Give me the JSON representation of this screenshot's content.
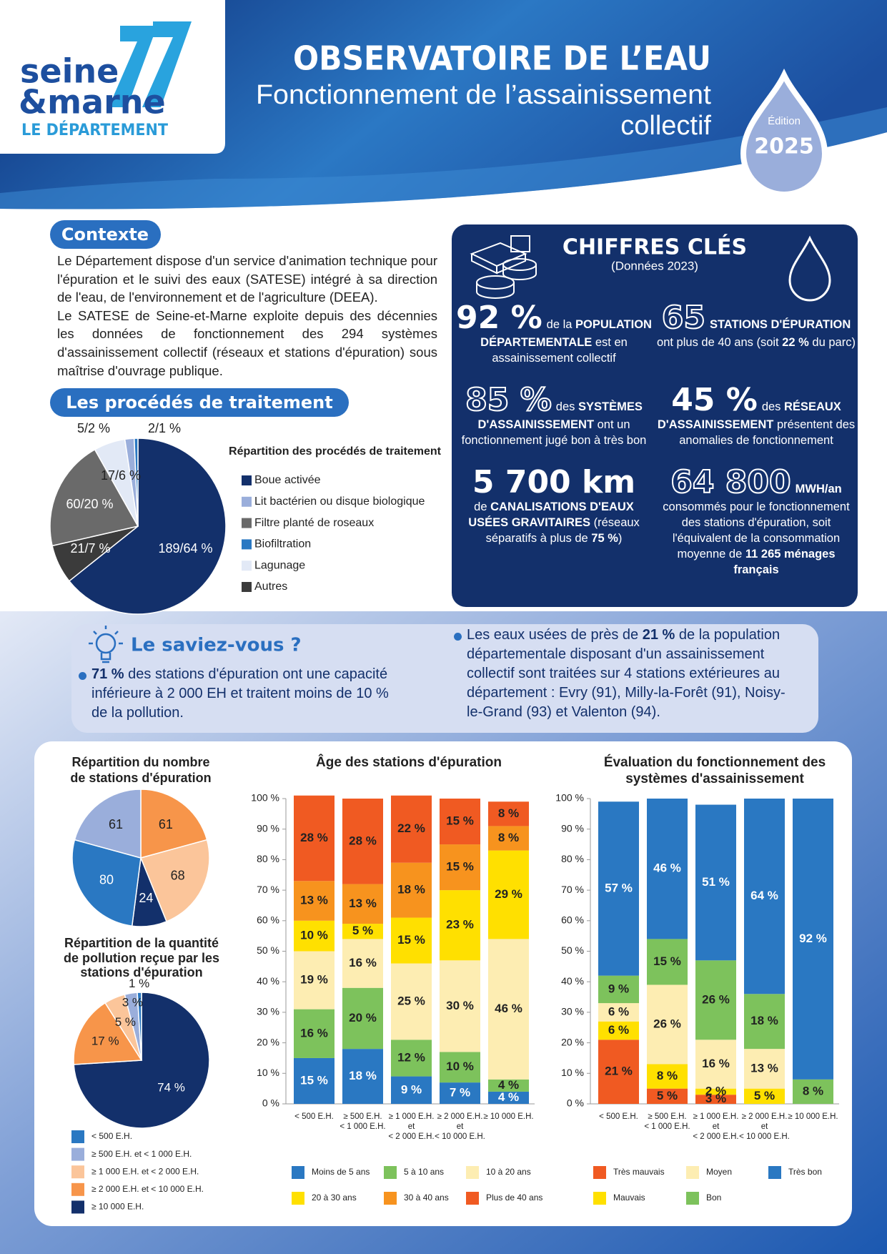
{
  "header": {
    "logo": [
      "seine",
      "&marne"
    ],
    "logo_tagline": "LE DÉPARTEMENT",
    "title": "OBSERVATOIRE DE L’EAU",
    "subtitle": [
      "Fonctionnement de l’assainissement",
      "collectif"
    ],
    "edition_label": "Édition",
    "edition_year": "2025"
  },
  "contexte": {
    "heading": "Contexte",
    "paragraphs": [
      "Le Département dispose d'un service d'animation technique pour l'épuration et le suivi des eaux (SATESE) intégré à sa direction de l'eau, de l'environnement et de l'agriculture (DEEA).",
      "Le SATESE de Seine-et-Marne exploite depuis des décennies les données de fonctionnement des 294 systèmes d'assainissement collectif (réseaux et stations d'épuration) sous maîtrise d'ouvrage publique."
    ]
  },
  "procedes": {
    "heading": "Les procédés de traitement"
  },
  "chiffres": {
    "title": "CHIFFRES CLÉS",
    "subtitle": "(Données 2023)",
    "items": [
      {
        "big": "92 %",
        "runs": [
          {
            "text": "de la "
          },
          {
            "text": "POPULATION DÉPARTEMENTALE",
            "strong": true
          },
          {
            "text": " est en assainissement collectif"
          }
        ]
      },
      {
        "big": "65",
        "runs": [
          {
            "text": "STATIONS D'ÉPURATION",
            "strong": true
          },
          {
            "text": " ont plus de 40 ans (soit "
          },
          {
            "text": "22 %",
            "strong": true
          },
          {
            "text": " du parc)"
          }
        ]
      },
      {
        "big": "85 %",
        "runs": [
          {
            "text": "des "
          },
          {
            "text": "SYSTÈMES D'ASSAINISSEMENT",
            "strong": true
          },
          {
            "text": " ont un fonctionnement jugé bon à très bon"
          }
        ]
      },
      {
        "big": "45 %",
        "runs": [
          {
            "text": "des "
          },
          {
            "text": "RÉSEAUX D'ASSAINISSEMENT",
            "strong": true
          },
          {
            "text": " présentent des anomalies de fonctionnement"
          }
        ]
      },
      {
        "big": "5 700 km",
        "runs": [
          {
            "text": "de "
          },
          {
            "text": "CANALISATIONS D'EAUX USÉES GRAVITAIRES",
            "strong": true
          },
          {
            "text": " (réseaux séparatifs à plus de "
          },
          {
            "text": "75 %",
            "strong": true
          },
          {
            "text": ")"
          }
        ]
      },
      {
        "big": "64 800",
        "runs": [
          {
            "text": "MWH/an",
            "strong": true
          },
          {
            "text": " consommés pour le fonctionnement des stations d'épuration, soit l'équivalent de la consommation moyenne de "
          },
          {
            "text": "11 265 ménages français",
            "strong": true
          }
        ]
      }
    ]
  },
  "saviez": {
    "title": "Le saviez-vous ?",
    "bullets": [
      [
        {
          "text": "71 %",
          "strong": true
        },
        {
          "text": " des stations d'épuration ont une capacité inférieure à 2 000 EH et traitent moins de 10 % de la pollution."
        }
      ],
      [
        {
          "text": "Les eaux usées de près de "
        },
        {
          "text": "21 %",
          "strong": true
        },
        {
          "text": " de la population départementale disposant d'un assainissement collectif sont traitées sur 4 stations extérieures au département : Evry (91), Milly-la-Forêt (91), Noisy-le-Grand (93) et Valenton (94)."
        }
      ]
    ]
  },
  "chart_data": [
    {
      "type": "pie",
      "title": "Répartition des procédés de traitement",
      "categories": [
        "Boue activée",
        "Lit bactérien ou disque biologique",
        "Filtre planté de roseaux",
        "Biofiltration",
        "Lagunage",
        "Autres"
      ],
      "colors": [
        "#13306b",
        "#9aaedb",
        "#6a6a6a",
        "#2a78c2",
        "#e2e9f6",
        "#3b3b3b"
      ],
      "values": [
        189,
        5,
        60,
        2,
        17,
        21
      ],
      "value_labels": [
        "189/64 %",
        "5/2 %",
        "60/20 %",
        "2/1 %",
        "17/6 %",
        "21/7 %"
      ]
    },
    {
      "type": "pie-pair",
      "categories": [
        "< 500 E.H.",
        "≥ 500 E.H. et < 1 000 E.H.",
        "≥ 1 000 E.H. et < 2 000 E.H.",
        "≥ 2 000 E.H. et < 10 000 E.H.",
        "≥ 10 000 E.H."
      ],
      "colors": [
        "#2a78c2",
        "#9aaedb",
        "#fbc59a",
        "#f7954a",
        "#13306b"
      ],
      "pies": [
        {
          "title": [
            "Répartition du nombre",
            "de stations d'épuration"
          ],
          "values": [
            80,
            61,
            68,
            61,
            24
          ]
        },
        {
          "title": [
            "Répartition de la quantité",
            "de pollution reçue par les",
            "stations d'épuration"
          ],
          "values": [
            1,
            3,
            5,
            17,
            74
          ],
          "value_labels": [
            "1 %",
            "3 %",
            "5 %",
            "17 %",
            "74 %"
          ]
        }
      ]
    },
    {
      "type": "stacked-bar",
      "title": [
        "Âge des stations d'épuration"
      ],
      "categories": [
        [
          "< 500 E.H."
        ],
        [
          "≥ 500 E.H.",
          "< 1 000 E.H."
        ],
        [
          "≥ 1 000 E.H.",
          "et",
          "< 2 000 E.H."
        ],
        [
          "≥ 2 000 E.H.",
          "et",
          "< 10 000 E.H."
        ],
        [
          "≥ 10 000 E.H."
        ]
      ],
      "ylim": [
        0,
        100
      ],
      "yticks": [
        {
          "value": 0,
          "label": "0 %"
        },
        {
          "value": 10,
          "label": "10 %"
        },
        {
          "value": 20,
          "label": "20 %"
        },
        {
          "value": 30,
          "label": "30 %"
        },
        {
          "value": 40,
          "label": "40 %"
        },
        {
          "value": 50,
          "label": "50 %"
        },
        {
          "value": 60,
          "label": "60 %"
        },
        {
          "value": 70,
          "label": "70 %"
        },
        {
          "value": 80,
          "label": "80 %"
        },
        {
          "value": 90,
          "label": "90 %"
        },
        {
          "value": 100,
          "label": "100 %"
        }
      ],
      "legend": "row-major",
      "series": [
        {
          "name": "Moins de 5 ans",
          "color": "#2a78c2",
          "values": [
            15,
            18,
            9,
            7,
            4
          ],
          "value_labels": [
            "15 %",
            "18 %",
            "9 %",
            "7 %",
            "4 %"
          ]
        },
        {
          "name": "5 à 10 ans",
          "color": "#7dc25c",
          "values": [
            16,
            20,
            12,
            10,
            4
          ],
          "value_labels": [
            "16 %",
            "20 %",
            "12 %",
            "10 %",
            "4 %"
          ]
        },
        {
          "name": "10 à 20 ans",
          "color": "#fdedb2",
          "values": [
            19,
            16,
            25,
            30,
            46
          ],
          "value_labels": [
            "19 %",
            "16 %",
            "25 %",
            "30 %",
            "46 %"
          ]
        },
        {
          "name": "20 à 30 ans",
          "color": "#ffe000",
          "values": [
            10,
            5,
            15,
            23,
            29
          ],
          "value_labels": [
            "10 %",
            "5 %",
            "15 %",
            "23 %",
            "29 %"
          ]
        },
        {
          "name": "30 à 40 ans",
          "color": "#f7931e",
          "values": [
            13,
            13,
            18,
            15,
            8
          ],
          "value_labels": [
            "13 %",
            "13 %",
            "18 %",
            "15 %",
            "8 %"
          ]
        },
        {
          "name": "Plus de 40 ans",
          "color": "#f05a22",
          "values": [
            28,
            28,
            22,
            15,
            8
          ],
          "value_labels": [
            "28 %",
            "28 %",
            "22 %",
            "15 %",
            "8 %"
          ]
        }
      ]
    },
    {
      "type": "stacked-bar",
      "title": [
        "Évaluation du fonctionnement des",
        "systèmes d'assainissement"
      ],
      "categories": [
        [
          "< 500 E.H."
        ],
        [
          "≥ 500 E.H.",
          "< 1 000 E.H."
        ],
        [
          "≥ 1 000 E.H.",
          "et",
          "< 2 000 E.H."
        ],
        [
          "≥ 2 000 E.H.",
          "et",
          "< 10 000 E.H."
        ],
        [
          "≥ 10 000 E.H."
        ]
      ],
      "ylim": [
        0,
        100
      ],
      "yticks": [
        {
          "value": 0,
          "label": "0 %"
        },
        {
          "value": 10,
          "label": "10 %"
        },
        {
          "value": 20,
          "label": "20 %"
        },
        {
          "value": 30,
          "label": "30 %"
        },
        {
          "value": 40,
          "label": "40 %"
        },
        {
          "value": 50,
          "label": "50 %"
        },
        {
          "value": 60,
          "label": "60 %"
        },
        {
          "value": 70,
          "label": "70 %"
        },
        {
          "value": 80,
          "label": "80 %"
        },
        {
          "value": 90,
          "label": "90 %"
        },
        {
          "value": 100,
          "label": "100 %"
        }
      ],
      "legend": "column-major",
      "series": [
        {
          "name": "Très mauvais",
          "color": "#f05a22",
          "values": [
            21,
            5,
            3,
            null,
            null
          ],
          "value_labels": [
            "21 %",
            "5 %",
            "3 %",
            null,
            null
          ]
        },
        {
          "name": "Mauvais",
          "color": "#ffe000",
          "values": [
            6,
            8,
            2,
            5,
            null
          ],
          "value_labels": [
            "6 %",
            "8 %",
            "2 %",
            "5 %",
            null
          ]
        },
        {
          "name": "Moyen",
          "color": "#fdedb2",
          "values": [
            6,
            26,
            16,
            13,
            null
          ],
          "value_labels": [
            "6 %",
            "26 %",
            "16 %",
            "13 %",
            null
          ]
        },
        {
          "name": "Bon",
          "color": "#7dc25c",
          "values": [
            9,
            15,
            26,
            18,
            8
          ],
          "value_labels": [
            "9 %",
            "15 %",
            "26 %",
            "18 %",
            "8 %"
          ]
        },
        {
          "name": "Très bon",
          "color": "#2a78c2",
          "values": [
            57,
            46,
            51,
            64,
            92
          ],
          "value_labels": [
            "57 %",
            "46 %",
            "51 %",
            "64 %",
            "92 %"
          ]
        }
      ]
    }
  ]
}
